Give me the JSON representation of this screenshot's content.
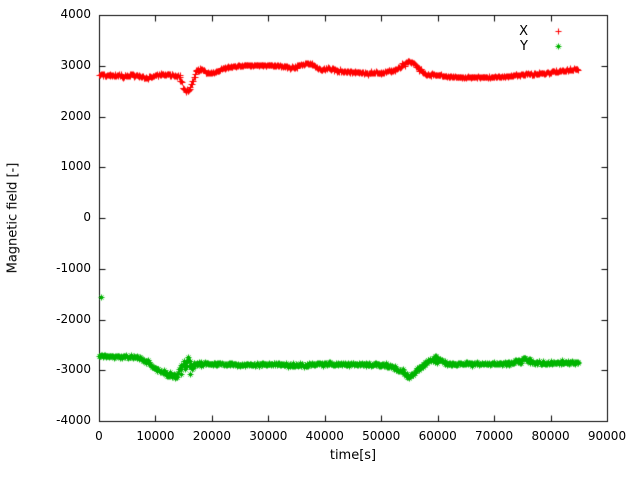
{
  "chart_data": {
    "type": "scatter",
    "title": "",
    "xlabel": "time[s]",
    "ylabel": "Magnetic field [-]",
    "xlim": [
      0,
      90000
    ],
    "ylim": [
      -4000,
      4000
    ],
    "xticks": [
      0,
      10000,
      20000,
      30000,
      40000,
      50000,
      60000,
      70000,
      80000,
      90000
    ],
    "yticks": [
      -4000,
      -3000,
      -2000,
      -1000,
      0,
      1000,
      2000,
      3000,
      4000
    ],
    "grid": false,
    "legend_position": "top-right",
    "series": [
      {
        "name": "X",
        "color": "#ff0000",
        "marker": "plus",
        "anchors": [
          [
            0,
            2810,
            40
          ],
          [
            2000,
            2820,
            45
          ],
          [
            4000,
            2795,
            50
          ],
          [
            6000,
            2820,
            40
          ],
          [
            8000,
            2770,
            50
          ],
          [
            9500,
            2800,
            40
          ],
          [
            11000,
            2830,
            40
          ],
          [
            12500,
            2815,
            45
          ],
          [
            13500,
            2820,
            50
          ],
          [
            14300,
            2760,
            70
          ],
          [
            15000,
            2560,
            90
          ],
          [
            15800,
            2500,
            80
          ],
          [
            16400,
            2640,
            90
          ],
          [
            17200,
            2900,
            60
          ],
          [
            18000,
            2930,
            40
          ],
          [
            19000,
            2870,
            40
          ],
          [
            20000,
            2850,
            40
          ],
          [
            21000,
            2900,
            35
          ],
          [
            22000,
            2950,
            30
          ],
          [
            23500,
            2985,
            25
          ],
          [
            25000,
            3005,
            20
          ],
          [
            27000,
            3010,
            20
          ],
          [
            29000,
            3010,
            20
          ],
          [
            31000,
            3005,
            20
          ],
          [
            33000,
            2990,
            30
          ],
          [
            34000,
            2955,
            45
          ],
          [
            35000,
            2985,
            50
          ],
          [
            36300,
            3040,
            40
          ],
          [
            37300,
            3060,
            40
          ],
          [
            38300,
            2975,
            50
          ],
          [
            39300,
            2925,
            50
          ],
          [
            40300,
            2955,
            50
          ],
          [
            41300,
            2950,
            40
          ],
          [
            42300,
            2895,
            40
          ],
          [
            44000,
            2880,
            40
          ],
          [
            46000,
            2870,
            40
          ],
          [
            48000,
            2860,
            40
          ],
          [
            50000,
            2870,
            40
          ],
          [
            52000,
            2905,
            40
          ],
          [
            53500,
            2990,
            50
          ],
          [
            54700,
            3085,
            45
          ],
          [
            55700,
            3060,
            50
          ],
          [
            56700,
            2940,
            55
          ],
          [
            57700,
            2850,
            50
          ],
          [
            59000,
            2830,
            60
          ],
          [
            60500,
            2810,
            50
          ],
          [
            62000,
            2785,
            30
          ],
          [
            64000,
            2775,
            25
          ],
          [
            66000,
            2775,
            25
          ],
          [
            68000,
            2778,
            25
          ],
          [
            70000,
            2780,
            25
          ],
          [
            72000,
            2790,
            28
          ],
          [
            74000,
            2815,
            35
          ],
          [
            75500,
            2835,
            40
          ],
          [
            77000,
            2830,
            40
          ],
          [
            78500,
            2845,
            45
          ],
          [
            80000,
            2870,
            50
          ],
          [
            81500,
            2900,
            50
          ],
          [
            83000,
            2920,
            50
          ],
          [
            84500,
            2930,
            40
          ],
          [
            85000,
            2925,
            40
          ]
        ],
        "outliers": []
      },
      {
        "name": "Y",
        "color": "#00b400",
        "marker": "asterisk",
        "anchors": [
          [
            0,
            -2720,
            35
          ],
          [
            2000,
            -2720,
            35
          ],
          [
            4000,
            -2730,
            40
          ],
          [
            6000,
            -2735,
            40
          ],
          [
            7500,
            -2760,
            45
          ],
          [
            8800,
            -2850,
            60
          ],
          [
            10000,
            -2975,
            60
          ],
          [
            11000,
            -3020,
            60
          ],
          [
            12000,
            -3060,
            70
          ],
          [
            13000,
            -3120,
            80
          ],
          [
            13800,
            -3110,
            90
          ],
          [
            14600,
            -2980,
            180
          ],
          [
            15300,
            -2900,
            320
          ],
          [
            16100,
            -2900,
            300
          ],
          [
            16800,
            -2890,
            120
          ],
          [
            17600,
            -2870,
            60
          ],
          [
            19000,
            -2870,
            50
          ],
          [
            21000,
            -2870,
            50
          ],
          [
            23000,
            -2875,
            50
          ],
          [
            25000,
            -2880,
            50
          ],
          [
            27000,
            -2885,
            50
          ],
          [
            29000,
            -2890,
            55
          ],
          [
            31000,
            -2880,
            50
          ],
          [
            33000,
            -2885,
            60
          ],
          [
            34500,
            -2900,
            80
          ],
          [
            35500,
            -2895,
            70
          ],
          [
            37000,
            -2885,
            55
          ],
          [
            39000,
            -2875,
            55
          ],
          [
            41000,
            -2880,
            50
          ],
          [
            43000,
            -2875,
            50
          ],
          [
            45000,
            -2875,
            50
          ],
          [
            47000,
            -2880,
            50
          ],
          [
            49000,
            -2885,
            50
          ],
          [
            51000,
            -2900,
            55
          ],
          [
            52500,
            -2945,
            60
          ],
          [
            53700,
            -3030,
            70
          ],
          [
            54700,
            -3110,
            70
          ],
          [
            55700,
            -3080,
            70
          ],
          [
            56700,
            -2960,
            65
          ],
          [
            57700,
            -2850,
            85
          ],
          [
            58700,
            -2795,
            115
          ],
          [
            59700,
            -2780,
            120
          ],
          [
            60700,
            -2820,
            90
          ],
          [
            61700,
            -2860,
            60
          ],
          [
            63000,
            -2870,
            50
          ],
          [
            65000,
            -2870,
            50
          ],
          [
            67000,
            -2880,
            50
          ],
          [
            69000,
            -2870,
            50
          ],
          [
            71000,
            -2870,
            50
          ],
          [
            73000,
            -2860,
            60
          ],
          [
            74300,
            -2815,
            90
          ],
          [
            75400,
            -2790,
            100
          ],
          [
            76500,
            -2820,
            80
          ],
          [
            78000,
            -2850,
            55
          ],
          [
            80000,
            -2860,
            50
          ],
          [
            82000,
            -2850,
            55
          ],
          [
            83500,
            -2840,
            50
          ],
          [
            85000,
            -2830,
            50
          ]
        ],
        "outliers": [
          [
            350,
            -1560
          ]
        ]
      }
    ]
  }
}
